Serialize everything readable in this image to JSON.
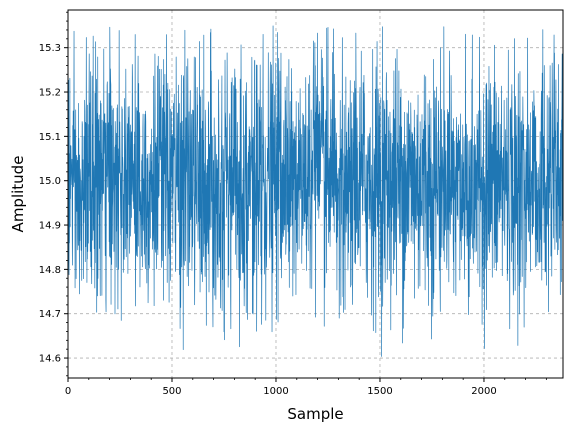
{
  "chart_data": {
    "type": "line",
    "title": "",
    "xlabel": "Sample",
    "ylabel": "Amplitude",
    "xlim": [
      0,
      2380
    ],
    "ylim": [
      14.555,
      15.385
    ],
    "xticks": [
      0,
      500,
      1000,
      1500,
      2000
    ],
    "yticks": [
      14.6,
      14.7,
      14.8,
      14.9,
      15.0,
      15.1,
      15.2,
      15.3
    ],
    "xtick_labels": [
      "0",
      "500",
      "1000",
      "1500",
      "2000"
    ],
    "ytick_labels": [
      "14.6",
      "14.7",
      "14.8",
      "14.9",
      "15.0",
      "15.1",
      "15.2",
      "15.3"
    ],
    "grid": true,
    "minor_ticks": true,
    "series": [
      {
        "color": "#1f77b4",
        "x_start": 0,
        "x_end": 2380,
        "n_points": 2381,
        "mean": 15.0,
        "std": 0.14,
        "min": 14.6,
        "max": 15.35
      }
    ]
  }
}
